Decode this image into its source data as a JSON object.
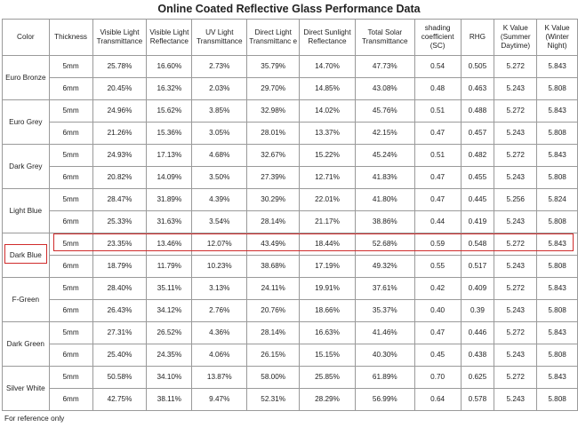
{
  "title": "Online Coated Reflective Glass Performance Data",
  "columns": [
    "Color",
    "Thickness",
    "Visible Light Transmittance",
    "Visible Light Reflectance",
    "UV Light Transmittance",
    "Direct Light Transmittanc e",
    "Direct Sunlight Reflectance",
    "Total Solar Transmittance",
    "shading coefficient (SC)",
    "RHG",
    "K Value (Summer Daytime)",
    "K Value (Winter Night)"
  ],
  "groups": [
    {
      "color": "Euro Bronze",
      "rows": [
        [
          "5mm",
          "25.78%",
          "16.60%",
          "2.73%",
          "35.79%",
          "14.70%",
          "47.73%",
          "0.54",
          "0.505",
          "5.272",
          "5.843"
        ],
        [
          "6mm",
          "20.45%",
          "16.32%",
          "2.03%",
          "29.70%",
          "14.85%",
          "43.08%",
          "0.48",
          "0.463",
          "5.243",
          "5.808"
        ]
      ]
    },
    {
      "color": "Euro Grey",
      "rows": [
        [
          "5mm",
          "24.96%",
          "15.62%",
          "3.85%",
          "32.98%",
          "14.02%",
          "45.76%",
          "0.51",
          "0.488",
          "5.272",
          "5.843"
        ],
        [
          "6mm",
          "21.26%",
          "15.36%",
          "3.05%",
          "28.01%",
          "13.37%",
          "42.15%",
          "0.47",
          "0.457",
          "5.243",
          "5.808"
        ]
      ]
    },
    {
      "color": "Dark Grey",
      "rows": [
        [
          "5mm",
          "24.93%",
          "17.13%",
          "4.68%",
          "32.67%",
          "15.22%",
          "45.24%",
          "0.51",
          "0.482",
          "5.272",
          "5.843"
        ],
        [
          "6mm",
          "20.82%",
          "14.09%",
          "3.50%",
          "27.39%",
          "12.71%",
          "41.83%",
          "0.47",
          "0.455",
          "5.243",
          "5.808"
        ]
      ]
    },
    {
      "color": "Light Blue",
      "rows": [
        [
          "5mm",
          "28.47%",
          "31.89%",
          "4.39%",
          "30.29%",
          "22.01%",
          "41.80%",
          "0.47",
          "0.445",
          "5.256",
          "5.824"
        ],
        [
          "6mm",
          "25.33%",
          "31.63%",
          "3.54%",
          "28.14%",
          "21.17%",
          "38.86%",
          "0.44",
          "0.419",
          "5.243",
          "5.808"
        ]
      ]
    },
    {
      "color": "Dark Blue",
      "rows": [
        [
          "5mm",
          "23.35%",
          "13.46%",
          "12.07%",
          "43.49%",
          "18.44%",
          "52.68%",
          "0.59",
          "0.548",
          "5.272",
          "5.843"
        ],
        [
          "6mm",
          "18.79%",
          "11.79%",
          "10.23%",
          "38.68%",
          "17.19%",
          "49.32%",
          "0.55",
          "0.517",
          "5.243",
          "5.808"
        ]
      ]
    },
    {
      "color": "F-Green",
      "rows": [
        [
          "5mm",
          "28.40%",
          "35.11%",
          "3.13%",
          "24.11%",
          "19.91%",
          "37.61%",
          "0.42",
          "0.409",
          "5.272",
          "5.843"
        ],
        [
          "6mm",
          "26.43%",
          "34.12%",
          "2.76%",
          "20.76%",
          "18.66%",
          "35.37%",
          "0.40",
          "0.39",
          "5.243",
          "5.808"
        ]
      ]
    },
    {
      "color": "Dark Green",
      "rows": [
        [
          "5mm",
          "27.31%",
          "26.52%",
          "4.36%",
          "28.14%",
          "16.63%",
          "41.46%",
          "0.47",
          "0.446",
          "5.272",
          "5.843"
        ],
        [
          "6mm",
          "25.40%",
          "24.35%",
          "4.06%",
          "26.15%",
          "15.15%",
          "40.30%",
          "0.45",
          "0.438",
          "5.243",
          "5.808"
        ]
      ]
    },
    {
      "color": "Silver White",
      "rows": [
        [
          "5mm",
          "50.58%",
          "34.10%",
          "13.87%",
          "58.00%",
          "25.85%",
          "61.89%",
          "0.70",
          "0.625",
          "5.272",
          "5.843"
        ],
        [
          "6mm",
          "42.75%",
          "38.11%",
          "9.47%",
          "52.31%",
          "28.29%",
          "56.99%",
          "0.64",
          "0.578",
          "5.243",
          "5.808"
        ]
      ]
    }
  ],
  "footnote": "For reference only",
  "highlight_color": "#d02b2b"
}
